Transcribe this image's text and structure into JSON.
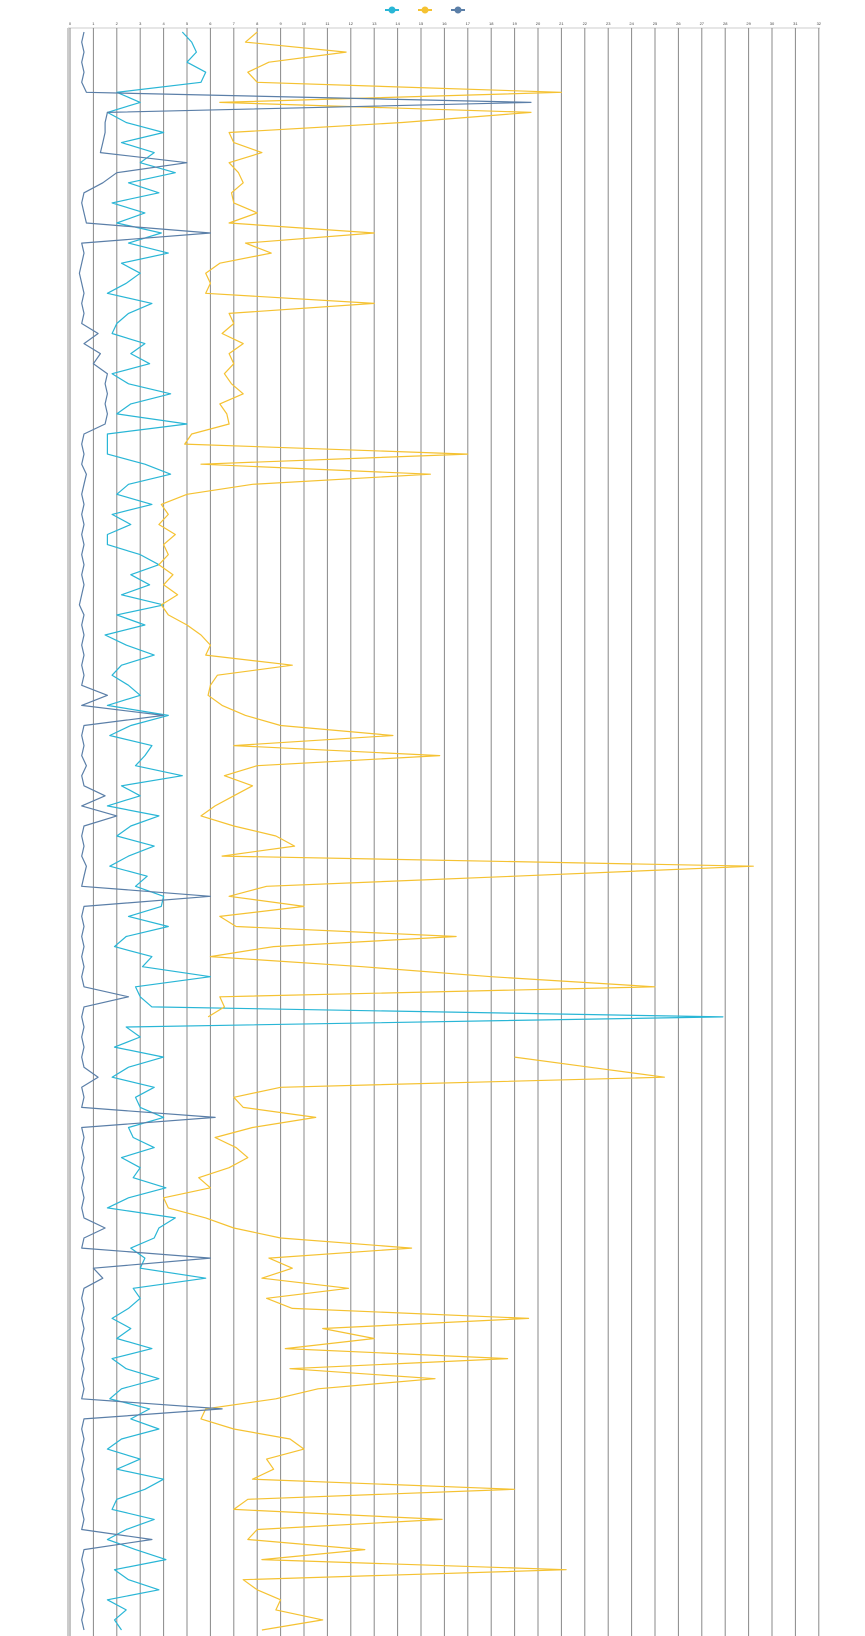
{
  "chart_data": {
    "type": "line",
    "orientation": "horizontal",
    "categories": [
      null,
      null,
      null,
      null,
      null,
      null,
      null,
      null,
      null,
      null,
      null,
      null,
      null,
      null,
      null,
      null,
      null,
      null,
      null,
      null,
      null,
      null,
      null,
      null,
      null,
      null,
      null,
      null,
      null,
      null,
      null,
      null,
      null,
      null,
      null,
      null,
      null,
      null,
      null,
      null,
      null,
      null,
      null,
      null,
      null,
      null,
      null,
      null,
      null,
      null,
      null,
      null,
      null,
      null,
      null,
      null,
      null,
      null,
      null,
      null,
      null,
      null,
      null,
      null,
      null,
      null,
      null,
      null,
      null,
      null,
      null,
      null,
      null,
      null,
      null,
      null,
      null,
      null,
      null,
      null,
      null,
      null,
      null,
      null,
      null,
      null,
      null,
      null,
      null,
      null,
      null,
      null,
      null,
      null,
      null,
      null,
      null,
      null,
      null,
      null,
      null,
      null,
      null,
      null,
      null,
      null,
      null,
      null,
      null,
      null,
      null,
      null,
      null,
      null,
      null,
      null,
      null,
      null,
      null,
      null,
      null,
      null,
      null,
      null,
      null,
      null,
      null,
      null,
      null,
      null,
      null,
      null,
      null,
      null,
      null,
      null,
      null,
      null,
      null,
      null,
      null,
      null,
      null,
      null,
      null,
      null,
      null,
      null,
      null,
      null,
      null,
      null,
      null,
      null,
      null,
      null,
      null,
      null,
      null,
      null
    ],
    "xlim": [
      0,
      32
    ],
    "xticks": [
      0,
      1,
      2,
      3,
      4,
      5,
      6,
      7,
      8,
      9,
      10,
      11,
      12,
      13,
      14,
      15,
      16,
      17,
      18,
      19,
      20,
      21,
      22,
      23,
      24,
      25,
      26,
      27,
      28,
      29,
      30,
      31,
      32
    ],
    "grid": true,
    "legend": "top",
    "series": [
      {
        "color": "#29b6d6",
        "values": [
          4.8,
          5.2,
          5.4,
          5.0,
          5.8,
          5.6,
          2.0,
          3.0,
          1.6,
          2.4,
          4.0,
          2.2,
          3.6,
          3.0,
          4.5,
          2.5,
          3.8,
          1.8,
          3.2,
          2.0,
          3.9,
          2.5,
          4.2,
          2.2,
          3.0,
          2.4,
          1.6,
          3.5,
          2.5,
          2.0,
          1.8,
          3.2,
          2.6,
          3.4,
          1.8,
          2.5,
          4.3,
          2.6,
          2.0,
          5.0,
          1.6,
          1.6,
          1.6,
          3.2,
          4.3,
          2.5,
          2.0,
          3.5,
          1.8,
          2.6,
          1.6,
          1.6,
          3.0,
          3.8,
          2.6,
          3.4,
          2.2,
          4.0,
          2.0,
          3.2,
          1.5,
          2.4,
          3.6,
          2.2,
          1.8,
          2.5,
          3.0,
          1.6,
          4.2,
          2.6,
          1.7,
          3.5,
          3.2,
          2.8,
          4.8,
          2.2,
          3.0,
          1.6,
          3.8,
          2.6,
          2.0,
          3.6,
          2.5,
          1.7,
          3.3,
          2.8,
          4.0,
          3.9,
          2.5,
          4.2,
          2.4,
          1.9,
          3.5,
          3.1,
          6.0,
          2.8,
          3.0,
          3.5,
          27.9,
          2.4,
          3.0,
          1.9,
          4.0,
          2.5,
          1.8,
          3.6,
          2.8,
          3.0,
          4.0,
          2.5,
          2.7,
          3.6,
          2.2,
          3.0,
          2.7,
          4.1,
          2.5,
          1.6,
          4.5,
          3.8,
          3.6,
          2.6,
          3.2,
          3.0,
          5.8,
          2.7,
          3.0,
          2.5,
          1.8,
          2.6,
          2.0,
          3.5,
          1.8,
          2.4,
          3.8,
          2.2,
          1.7,
          3.4,
          2.6,
          3.8,
          2.2,
          1.6,
          3.0,
          2.0,
          4.0,
          3.2,
          2.0,
          1.8,
          3.6,
          2.4,
          1.6,
          2.8,
          4.1,
          1.9,
          2.5,
          3.8,
          1.6,
          2.4,
          1.9,
          2.2
        ]
      },
      {
        "color": "#f5c232",
        "values": [
          8.0,
          7.5,
          11.8,
          8.5,
          7.6,
          8.0,
          21.0,
          6.4,
          19.7,
          14.2,
          6.8,
          7.0,
          8.2,
          6.8,
          7.2,
          7.4,
          6.9,
          7.0,
          8.0,
          6.8,
          13.0,
          7.5,
          8.6,
          6.4,
          5.8,
          6.0,
          5.8,
          13.0,
          6.8,
          7.0,
          6.5,
          7.4,
          6.8,
          7.0,
          6.6,
          6.9,
          7.4,
          6.4,
          6.7,
          6.8,
          5.2,
          4.9,
          17.0,
          5.6,
          15.4,
          7.8,
          5.0,
          3.9,
          4.2,
          3.8,
          4.5,
          4.0,
          4.2,
          3.8,
          4.4,
          4.0,
          4.6,
          3.9,
          4.2,
          5.0,
          5.6,
          6.0,
          5.8,
          9.5,
          6.3,
          6.0,
          5.9,
          6.5,
          7.5,
          9.0,
          13.8,
          7.0,
          15.8,
          8.0,
          6.6,
          7.8,
          7.0,
          6.2,
          5.6,
          7.0,
          8.8,
          9.6,
          6.5,
          29.2,
          19.0,
          8.4,
          6.8,
          10.0,
          6.4,
          7.1,
          16.5,
          8.7,
          6.0,
          12.5,
          18.0,
          25.0,
          6.4,
          6.6,
          5.9,
          null,
          null,
          null,
          19.0,
          22.2,
          25.4,
          9.0,
          7.0,
          7.4,
          10.5,
          7.8,
          6.2,
          7.1,
          7.6,
          6.8,
          5.5,
          6.0,
          4.0,
          4.2,
          5.8,
          7.0,
          9.0,
          14.6,
          8.5,
          9.5,
          8.2,
          11.9,
          8.4,
          9.5,
          19.6,
          10.8,
          13.0,
          9.2,
          18.7,
          9.4,
          15.6,
          10.6,
          8.8,
          5.8,
          5.6,
          7.0,
          9.4,
          10.0,
          8.4,
          8.7,
          7.8,
          19.0,
          7.6,
          7.0,
          15.9,
          8.0,
          7.6,
          12.6,
          8.2,
          21.2,
          7.4,
          8.0,
          9.0,
          8.8,
          10.8,
          8.2
        ]
      },
      {
        "color": "#5b7fa8",
        "values": [
          0.6,
          0.5,
          0.6,
          0.5,
          0.6,
          0.5,
          0.7,
          19.7,
          1.6,
          1.5,
          1.5,
          1.4,
          1.3,
          5.0,
          2.0,
          1.4,
          0.6,
          0.5,
          0.6,
          0.7,
          6.0,
          0.5,
          0.6,
          0.5,
          0.4,
          0.5,
          0.6,
          0.5,
          0.6,
          0.5,
          1.2,
          0.6,
          1.3,
          1.0,
          1.6,
          1.5,
          1.6,
          1.5,
          1.6,
          1.5,
          0.6,
          0.5,
          0.6,
          0.5,
          0.7,
          0.6,
          0.5,
          0.6,
          0.5,
          0.6,
          0.5,
          0.6,
          0.5,
          0.6,
          0.5,
          0.6,
          0.5,
          0.4,
          0.6,
          0.5,
          0.6,
          0.5,
          0.6,
          0.5,
          0.6,
          0.5,
          1.6,
          0.5,
          4.0,
          0.6,
          0.5,
          0.6,
          0.5,
          0.7,
          0.5,
          0.6,
          1.5,
          0.5,
          2.0,
          0.6,
          0.5,
          0.6,
          0.5,
          0.7,
          0.6,
          0.5,
          6.0,
          0.6,
          0.5,
          0.6,
          0.5,
          0.6,
          0.5,
          0.6,
          0.5,
          0.6,
          2.5,
          0.6,
          0.5,
          0.6,
          0.5,
          0.6,
          0.5,
          0.6,
          1.2,
          0.5,
          0.6,
          0.5,
          6.2,
          0.5,
          0.6,
          0.5,
          0.6,
          0.5,
          0.6,
          0.5,
          0.6,
          0.5,
          0.6,
          1.5,
          0.6,
          0.5,
          6.0,
          1.0,
          1.4,
          0.6,
          0.5,
          0.6,
          0.5,
          0.6,
          0.5,
          0.6,
          0.5,
          0.6,
          0.5,
          0.6,
          0.5,
          6.5,
          0.6,
          0.5,
          0.6,
          0.5,
          0.6,
          0.5,
          0.6,
          0.5,
          0.6,
          0.5,
          0.6,
          0.5,
          3.5,
          0.6,
          0.5,
          0.6,
          0.5,
          0.6,
          0.5,
          0.6,
          0.5,
          0.6
        ]
      }
    ]
  }
}
